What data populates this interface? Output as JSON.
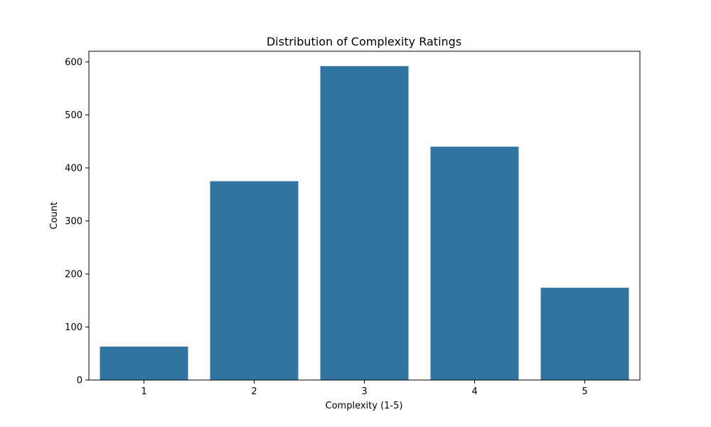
{
  "chart_data": {
    "type": "bar",
    "title": "Distribution of Complexity Ratings",
    "xlabel": "Complexity (1-5)",
    "ylabel": "Count",
    "categories": [
      "1",
      "2",
      "3",
      "4",
      "5"
    ],
    "values": [
      63,
      375,
      592,
      440,
      174
    ],
    "ylim": [
      0,
      620
    ],
    "yticks": [
      0,
      100,
      200,
      300,
      400,
      500,
      600
    ],
    "grid": false,
    "bar_color": "#3274a1"
  }
}
